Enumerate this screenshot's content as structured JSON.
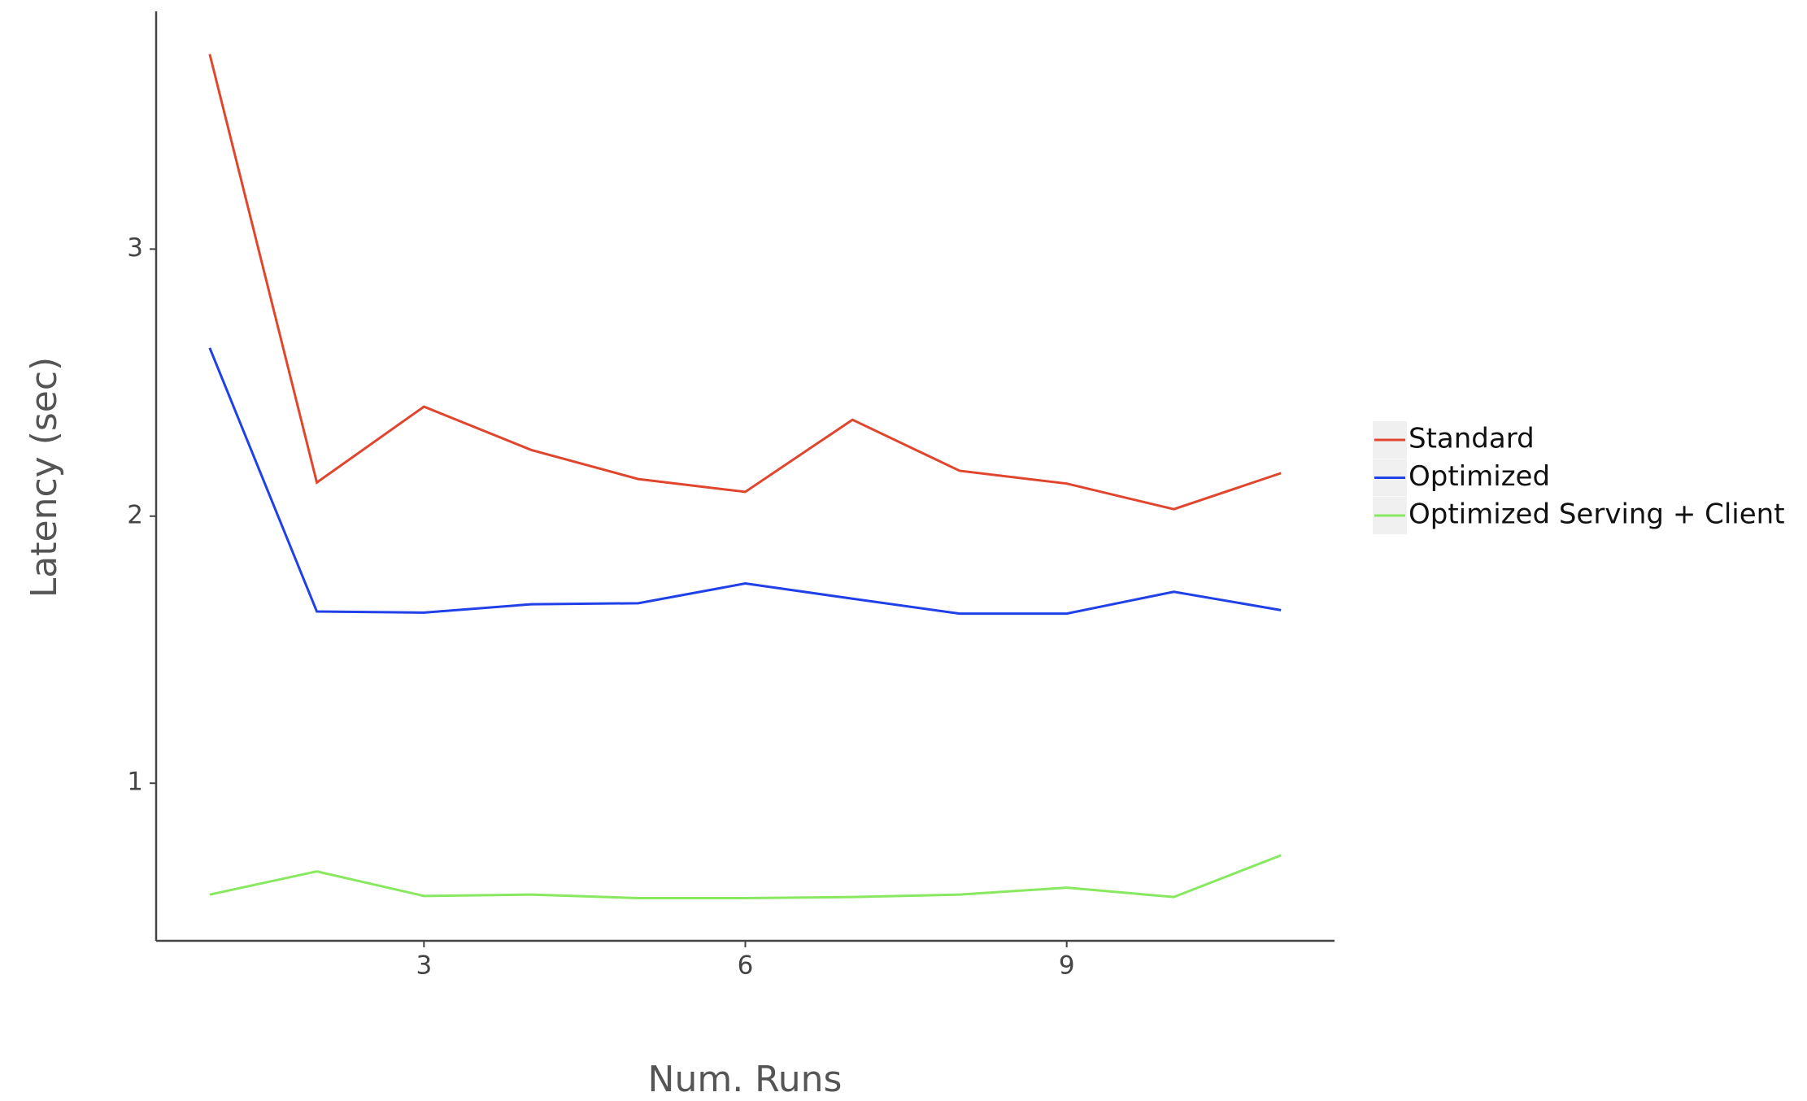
{
  "chart_data": {
    "type": "line",
    "x_label": "Num. Runs",
    "y_label": "Latency (sec)",
    "x": [
      1,
      2,
      3,
      4,
      5,
      6,
      7,
      8,
      9,
      10,
      11
    ],
    "series": [
      {
        "name": "Standard",
        "color": "#e0462e",
        "values": [
          3.73,
          2.126,
          2.41,
          2.248,
          2.139,
          2.091,
          2.361,
          2.17,
          2.122,
          2.026,
          2.161
        ]
      },
      {
        "name": "Optimized",
        "color": "#2040e8",
        "values": [
          2.63,
          1.643,
          1.639,
          1.67,
          1.674,
          1.748,
          1.691,
          1.635,
          1.635,
          1.717,
          1.648
        ]
      },
      {
        "name": "Optimized Serving + Client",
        "color": "#88e860",
        "values": [
          0.583,
          0.67,
          0.578,
          0.583,
          0.57,
          0.57,
          0.574,
          0.583,
          0.609,
          0.574,
          0.73
        ]
      }
    ],
    "xlim": [
      0.5,
      11.5
    ],
    "xticks": [
      3,
      6,
      9
    ],
    "ylim": [
      0.41,
      3.89
    ],
    "yticks": [
      1,
      2,
      3
    ],
    "grid": false,
    "legend": "right"
  }
}
